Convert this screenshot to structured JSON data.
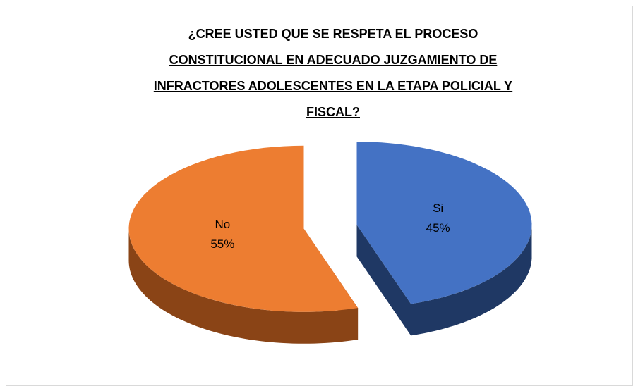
{
  "chart_data": {
    "type": "pie",
    "title": "¿CREE USTED QUE SE RESPETA EL PROCESO CONSTITUCIONAL EN ADECUADO JUZGAMIENTO DE INFRACTORES ADOLESCENTES EN LA ETAPA POLICIAL Y FISCAL?",
    "categories": [
      "Si",
      "No"
    ],
    "values": [
      45,
      55
    ],
    "value_labels": [
      "45%",
      "55%"
    ],
    "colors": [
      "#4472c4",
      "#ed7d31"
    ],
    "side_colors": [
      "#1f3864",
      "#8a4416"
    ]
  }
}
